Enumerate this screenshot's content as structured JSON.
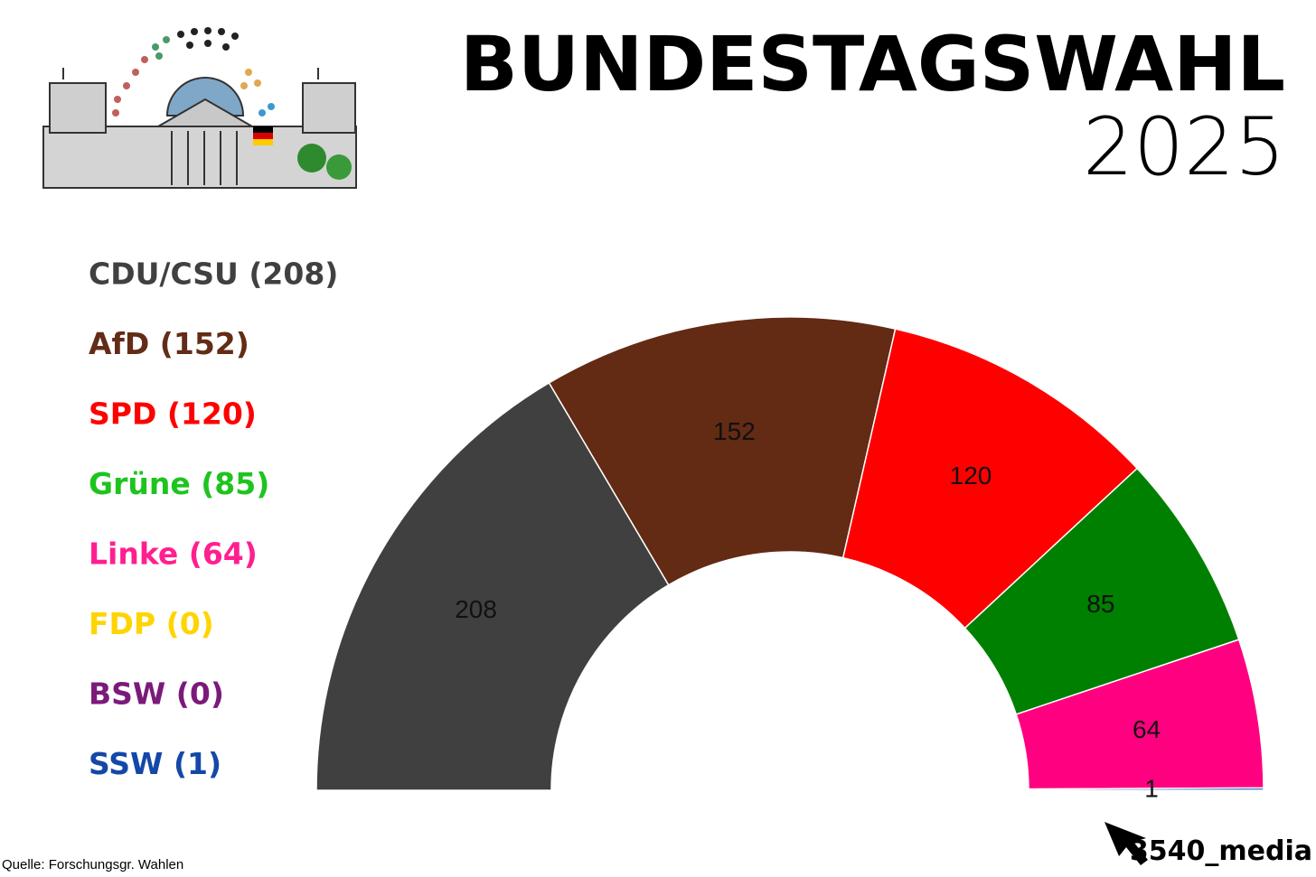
{
  "chart_data": {
    "type": "semicircle",
    "title": "BUNDESTAGSWAHL",
    "subtitle": "2025",
    "categories": [
      "CDU/CSU  (208)",
      "AfD (152)",
      "SPD (120)",
      "Grüne (85)",
      "Linke (64)",
      "FDP (0)",
      "BSW (0)",
      "SSW (1)"
    ],
    "values": [
      208,
      152,
      120,
      85,
      64,
      0,
      0,
      1
    ],
    "colors": [
      "#404040",
      "#632a14",
      "#ff0000",
      "#008000",
      "#ff0080",
      "#ffd700",
      "#7b1a7b",
      "#1448a8"
    ],
    "legend_colors": [
      "#404040",
      "#632c16",
      "#ff0000",
      "#1ec41e",
      "#ff1f8f",
      "#ffd400",
      "#7b1a7b",
      "#1448a8"
    ],
    "source": "Quelle: Forschungsgr. Wahlen",
    "brand": "3540_media"
  }
}
